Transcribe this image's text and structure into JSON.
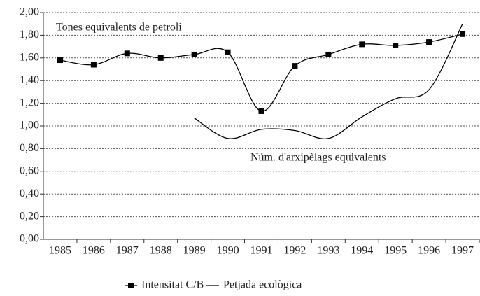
{
  "chart_data": {
    "type": "line",
    "categories": [
      "1985",
      "1986",
      "1987",
      "1988",
      "1989",
      "1990",
      "1991",
      "1992",
      "1993",
      "1994",
      "1995",
      "1996",
      "1997"
    ],
    "series": [
      {
        "name": "Intensitat C/B",
        "color": "#000000",
        "marker": "square",
        "values": [
          1.58,
          1.54,
          1.64,
          1.6,
          1.63,
          1.65,
          1.13,
          1.53,
          1.63,
          1.72,
          1.71,
          1.74,
          1.81
        ]
      },
      {
        "name": "Petjada ecològica",
        "color": "#000000",
        "marker": "none",
        "values": [
          null,
          null,
          null,
          null,
          1.07,
          0.89,
          0.97,
          0.96,
          0.89,
          1.08,
          1.24,
          1.32,
          1.9
        ]
      }
    ],
    "annotations": [
      "Tones equivalents de petroli",
      "Núm. d'arxipèlags equivalents"
    ],
    "ylim": [
      0,
      2
    ],
    "yticks": [
      {
        "value": 0,
        "label": "0,00"
      },
      {
        "value": 0.2,
        "label": "0,20"
      },
      {
        "value": 0.4,
        "label": "0,40"
      },
      {
        "value": 0.6,
        "label": "0,60"
      },
      {
        "value": 0.8,
        "label": "0,80"
      },
      {
        "value": 1,
        "label": "1,00"
      },
      {
        "value": 1.2,
        "label": "1,20"
      },
      {
        "value": 1.4,
        "label": "1,40"
      },
      {
        "value": 1.6,
        "label": "1,60"
      },
      {
        "value": 1.8,
        "label": "1,80"
      },
      {
        "value": 2,
        "label": "2,00"
      }
    ],
    "grid": true,
    "legend": "bottom"
  }
}
